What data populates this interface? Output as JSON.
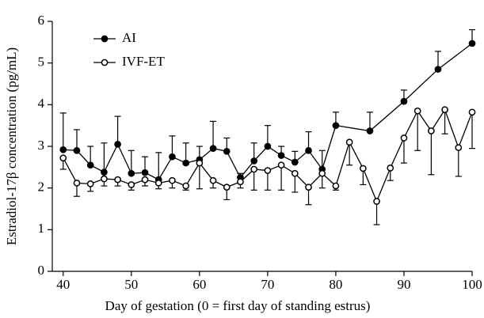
{
  "chart_data": {
    "type": "line",
    "xlabel": "Day of gestation (0 = first day of standing estrus)",
    "ylabel": "Estradiol-17β concentration (pg/mL)",
    "xlim": [
      38.4,
      100
    ],
    "xticks": [
      40,
      50,
      60,
      70,
      80,
      90,
      100
    ],
    "ylim": [
      0,
      6
    ],
    "yticks": [
      0,
      1,
      2,
      3,
      4,
      5,
      6
    ],
    "legend": "upper left",
    "grid": false,
    "series": [
      {
        "name": "AI",
        "color": "#000000",
        "marker": "filled",
        "error_direction": "up",
        "x": [
          40,
          42,
          44,
          46,
          48,
          50,
          52,
          54,
          56,
          58,
          60,
          62,
          64,
          66,
          68,
          70,
          72,
          74,
          76,
          78,
          80,
          85,
          90,
          95,
          100
        ],
        "values": [
          2.92,
          2.9,
          2.55,
          2.38,
          3.05,
          2.35,
          2.37,
          2.2,
          2.75,
          2.6,
          2.68,
          2.95,
          2.88,
          2.25,
          2.65,
          3.0,
          2.78,
          2.62,
          2.9,
          2.45,
          3.5,
          3.37,
          4.08,
          4.85,
          5.47
        ],
        "errors": [
          0.88,
          0.5,
          0.45,
          0.7,
          0.67,
          0.55,
          0.38,
          0.65,
          0.5,
          0.48,
          0.32,
          0.65,
          0.32,
          0.1,
          0.43,
          0.5,
          0.22,
          0.26,
          0.45,
          0.45,
          0.32,
          0.45,
          0.27,
          0.43,
          0.33
        ]
      },
      {
        "name": "IVF-ET",
        "color": "#000000",
        "marker": "open",
        "error_direction": "down",
        "x": [
          40,
          42,
          44,
          46,
          48,
          50,
          52,
          54,
          56,
          58,
          60,
          62,
          64,
          66,
          68,
          70,
          72,
          74,
          76,
          78,
          80,
          82,
          84,
          86,
          88,
          90,
          92,
          94,
          96,
          98,
          100
        ],
        "values": [
          2.72,
          2.12,
          2.1,
          2.22,
          2.2,
          2.08,
          2.2,
          2.12,
          2.18,
          2.05,
          2.6,
          2.18,
          2.02,
          2.15,
          2.45,
          2.42,
          2.55,
          2.35,
          2.02,
          2.35,
          2.05,
          3.1,
          2.47,
          1.68,
          2.48,
          3.2,
          3.85,
          3.37,
          3.88,
          2.97,
          3.82
        ],
        "errors": [
          0.27,
          0.32,
          0.18,
          0.17,
          0.15,
          0.13,
          0.15,
          0.14,
          0.18,
          0.1,
          0.62,
          0.18,
          0.3,
          0.15,
          0.5,
          0.47,
          0.6,
          0.45,
          0.42,
          0.35,
          0.1,
          0.55,
          0.39,
          0.56,
          0.3,
          0.6,
          0.95,
          1.05,
          0.58,
          0.69,
          0.87
        ]
      }
    ]
  }
}
